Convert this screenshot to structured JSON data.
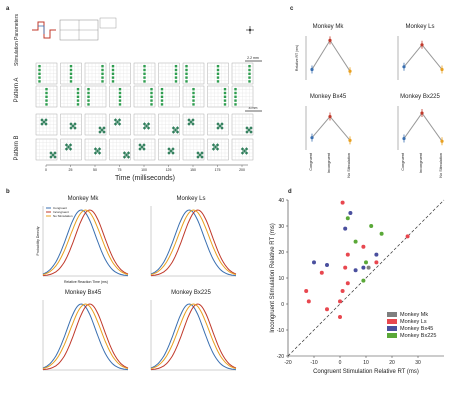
{
  "panel_labels": {
    "a": "a",
    "b": "b",
    "c": "c",
    "d": "d"
  },
  "panel_a": {
    "stim_params_label": "Stimulation Parameters",
    "pattern_a_label": "Pattern A",
    "pattern_b_label": "Pattern B",
    "scale_label": "2.2 mm",
    "scale_label_b": "8 mm",
    "time_ticks": [
      "0",
      "25",
      "50",
      "75",
      "100",
      "125",
      "150",
      "175",
      "200"
    ],
    "xlabel": "Time (milliseconds)"
  },
  "chart_data": [
    {
      "type": "line",
      "title": "Monkey Mk",
      "ylabel": "Relative RT (ms)",
      "categories": [
        "Congruent",
        "Incongruent",
        "No Stimulation"
      ],
      "series": [
        {
          "values": [
            -8,
            25,
            -10
          ]
        }
      ]
    },
    {
      "type": "line",
      "title": "Monkey Ls",
      "categories": [
        "Congruent",
        "Incongruent",
        "No Stimulation"
      ],
      "series": [
        {
          "values": [
            -5,
            20,
            -8
          ]
        }
      ]
    },
    {
      "type": "line",
      "title": "Monkey Bx45",
      "categories": [
        "Congruent",
        "Incongruent",
        "No Stimulation"
      ],
      "series": [
        {
          "values": [
            -6,
            18,
            -9
          ]
        }
      ]
    },
    {
      "type": "line",
      "title": "Monkey Bx225",
      "categories": [
        "Congruent",
        "Incongruent",
        "No Stimulation"
      ],
      "series": [
        {
          "values": [
            -7,
            22,
            -10
          ]
        }
      ]
    },
    {
      "type": "area",
      "title": "Monkey Mk",
      "ylabel": "Probability Density",
      "xlabel": "Relative Reaction Time (ms)",
      "legend": [
        "Congruent",
        "Incongruent",
        "No Stimulation"
      ]
    },
    {
      "type": "area",
      "title": "Monkey Ls"
    },
    {
      "type": "area",
      "title": "Monkey Bx45"
    },
    {
      "type": "area",
      "title": "Monkey Bx225"
    },
    {
      "type": "scatter",
      "xlabel": "Congruent Stimulation Relative RT (ms)",
      "ylabel": "Incongruent Stimulation Relative RT (ms)",
      "xlim": [
        -20,
        40
      ],
      "ylim": [
        -20,
        40
      ],
      "xticks": [
        "-20",
        "-10",
        "0",
        "10",
        "20",
        "30"
      ],
      "yticks": [
        "-20",
        "-10",
        "0",
        "10",
        "20",
        "30",
        "40"
      ],
      "legend_position": "bottom-right",
      "series": [
        {
          "name": "Monkey Mk",
          "color": "#7f7f7f",
          "points": [
            [
              11,
              14
            ]
          ]
        },
        {
          "name": "Monkey Ls",
          "color": "#e8474f",
          "points": [
            [
              -13,
              5
            ],
            [
              -12,
              1
            ],
            [
              -7,
              12
            ],
            [
              -5,
              -2
            ],
            [
              0,
              1
            ],
            [
              1,
              5
            ],
            [
              2,
              14
            ],
            [
              3,
              8
            ],
            [
              3,
              19
            ],
            [
              0,
              -5
            ],
            [
              9,
              22
            ],
            [
              14,
              16
            ],
            [
              26,
              26
            ],
            [
              1,
              39
            ]
          ]
        },
        {
          "name": "Monkey Bx45",
          "color": "#4a4f9e",
          "points": [
            [
              -10,
              16
            ],
            [
              -5,
              15
            ],
            [
              4,
              35
            ],
            [
              6,
              13
            ],
            [
              9,
              14
            ],
            [
              14,
              19
            ],
            [
              2,
              29
            ]
          ]
        },
        {
          "name": "Monkey Bx225",
          "color": "#5aa838",
          "points": [
            [
              6,
              24
            ],
            [
              10,
              16
            ],
            [
              16,
              27
            ],
            [
              9,
              9
            ],
            [
              3,
              33
            ],
            [
              12,
              30
            ]
          ]
        }
      ]
    }
  ],
  "colors": {
    "congruent": "#3a6fb0",
    "incongruent": "#c0392b",
    "nostim": "#e8a020",
    "grey": "#7f7f7f"
  }
}
